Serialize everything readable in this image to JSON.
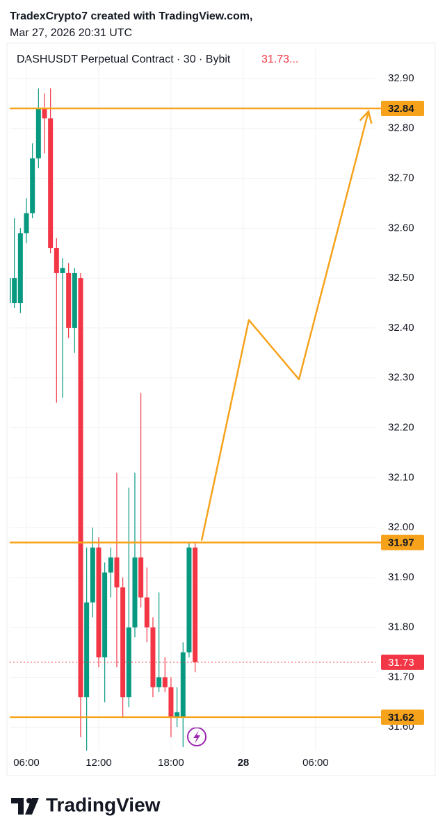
{
  "header": {
    "line1": "TradexCrypto7 created with TradingView.com,",
    "line2": "Mar 27, 2026 20:31 UTC"
  },
  "logo": "TradingView",
  "chart_data": {
    "type": "candlestick",
    "title": "DASHUSDT Perpetual Contract · 30 · Bybit",
    "title_price": "31.73...",
    "title_price_color": "#f23645",
    "x": [
      4.5,
      5,
      5.5,
      6,
      6.5,
      7,
      7.5,
      8,
      8.5,
      9,
      9.5,
      10,
      10.5,
      11,
      11.5,
      12,
      12.5,
      13,
      13.5,
      14,
      14.5,
      15,
      15.5,
      16,
      16.5,
      17,
      17.5,
      18,
      18.5,
      19,
      19.5,
      20
    ],
    "open": [
      32.45,
      32.45,
      32.45,
      32.59,
      32.63,
      32.74,
      32.84,
      32.82,
      32.56,
      32.51,
      32.51,
      32.4,
      32.5,
      31.66,
      31.85,
      31.96,
      31.74,
      31.91,
      31.94,
      31.88,
      31.66,
      31.8,
      31.94,
      31.86,
      31.8,
      31.68,
      31.7,
      31.68,
      31.62,
      31.62,
      31.75,
      31.96
    ],
    "high": [
      32.5,
      32.62,
      32.6,
      32.66,
      32.77,
      32.88,
      32.87,
      32.88,
      32.58,
      32.54,
      32.53,
      32.52,
      32.51,
      31.96,
      32.0,
      31.98,
      31.93,
      31.96,
      32.11,
      31.9,
      32.08,
      32.11,
      32.27,
      31.92,
      31.82,
      31.87,
      31.74,
      31.7,
      31.68,
      31.77,
      31.97,
      31.97
    ],
    "low": [
      32.41,
      32.44,
      32.43,
      32.57,
      32.62,
      32.72,
      32.75,
      32.55,
      32.25,
      32.26,
      32.38,
      32.35,
      31.58,
      31.55,
      31.82,
      31.72,
      31.65,
      31.86,
      31.72,
      31.62,
      31.64,
      31.78,
      31.84,
      31.77,
      31.66,
      31.67,
      31.67,
      31.58,
      31.6,
      31.56,
      31.74,
      31.71
    ],
    "close": [
      32.5,
      32.5,
      32.59,
      32.63,
      32.74,
      32.84,
      32.82,
      32.56,
      32.51,
      32.52,
      32.4,
      32.51,
      31.66,
      31.85,
      31.96,
      31.74,
      31.91,
      31.94,
      31.88,
      31.66,
      31.8,
      31.94,
      31.86,
      31.8,
      31.68,
      31.7,
      31.68,
      31.62,
      31.63,
      31.75,
      31.96,
      31.73
    ],
    "up_color": "#089981",
    "down_color": "#f23645",
    "xlim": [
      4.615,
      34.97
    ],
    "xticks": [
      {
        "value": 6,
        "label": "06:00"
      },
      {
        "value": 12,
        "label": "12:00"
      },
      {
        "value": 18,
        "label": "18:00"
      },
      {
        "value": 24,
        "label": "28"
      },
      {
        "value": 30,
        "label": "06:00"
      }
    ],
    "ylim": [
      31.553,
      32.918
    ],
    "yticks": [
      {
        "value": 31.6,
        "label": "31.60"
      },
      {
        "value": 31.7,
        "label": "31.70"
      },
      {
        "value": 31.8,
        "label": "31.80"
      },
      {
        "value": 31.9,
        "label": "31.90"
      },
      {
        "value": 32.0,
        "label": "32.00"
      },
      {
        "value": 32.1,
        "label": "32.10"
      },
      {
        "value": 32.2,
        "label": "32.20"
      },
      {
        "value": 32.3,
        "label": "32.30"
      },
      {
        "value": 32.4,
        "label": "32.40"
      },
      {
        "value": 32.5,
        "label": "32.50"
      },
      {
        "value": 32.6,
        "label": "32.60"
      },
      {
        "value": 32.7,
        "label": "32.70"
      },
      {
        "value": 32.8,
        "label": "32.80"
      },
      {
        "value": 32.9,
        "label": "32.90"
      }
    ],
    "grid": true,
    "levels": [
      {
        "value": 32.84,
        "color": "#f7a21b"
      },
      {
        "value": 31.97,
        "color": "#f7a21b"
      },
      {
        "value": 31.62,
        "color": "#f7a21b"
      }
    ],
    "last_price": 31.73,
    "last_price_color": "#f23645",
    "projection": {
      "color": "#f7a21b",
      "x": [
        20.54,
        24.46,
        28.62,
        34.39
      ],
      "y": [
        31.974,
        32.416,
        32.297,
        32.834
      ]
    }
  }
}
